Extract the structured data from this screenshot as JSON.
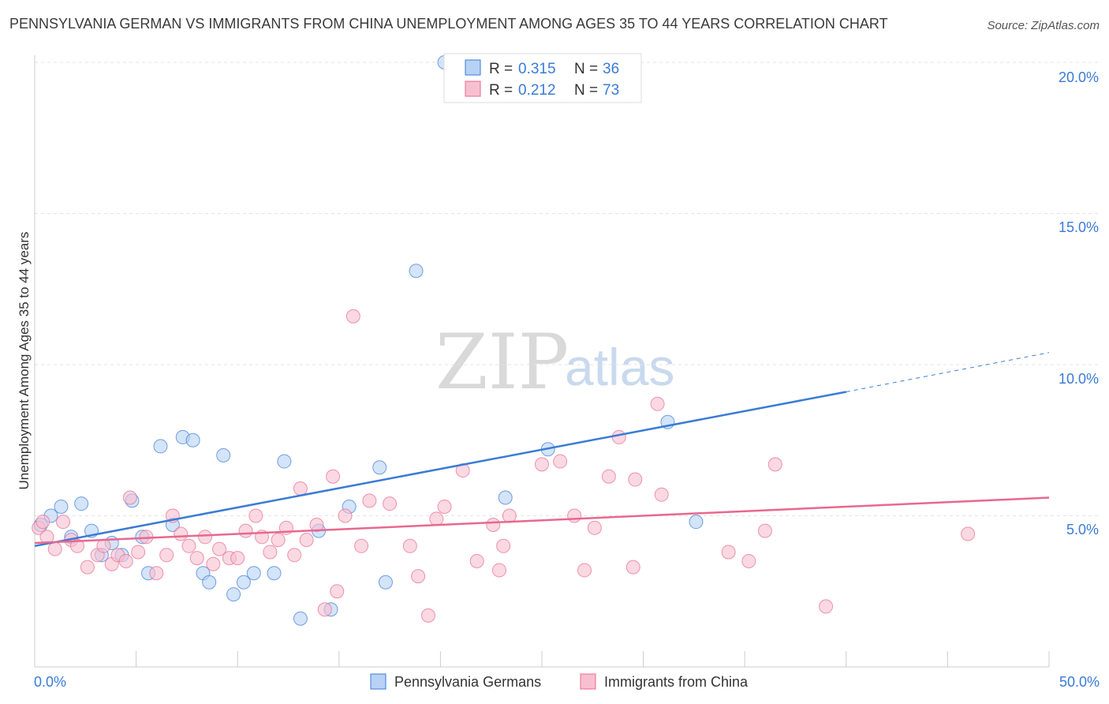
{
  "title": "PENNSYLVANIA GERMAN VS IMMIGRANTS FROM CHINA UNEMPLOYMENT AMONG AGES 35 TO 44 YEARS CORRELATION CHART",
  "source": "Source: ZipAtlas.com",
  "watermark": {
    "zip": "ZIP",
    "atlas": "atlas"
  },
  "legend": {
    "r_label": "R =",
    "n_label": "N =",
    "series": [
      {
        "r": "0.315",
        "n": "36"
      },
      {
        "r": "0.212",
        "n": "73"
      }
    ]
  },
  "chart_data": {
    "type": "scatter",
    "title": "PENNSYLVANIA GERMAN VS IMMIGRANTS FROM CHINA UNEMPLOYMENT AMONG AGES 35 TO 44 YEARS CORRELATION CHART",
    "xlabel": "",
    "ylabel": "Unemployment Among Ages 35 to 44 years",
    "xlim": [
      0,
      50
    ],
    "ylim": [
      0,
      20.5
    ],
    "x_tick_labels": [
      "0.0%",
      "50.0%"
    ],
    "y_ticks": [
      5,
      10,
      15,
      20
    ],
    "y_tick_labels": [
      "5.0%",
      "10.0%",
      "15.0%",
      "20.0%"
    ],
    "grid": true,
    "legend_position": "top-center",
    "colors": {
      "blue": "#3a7bd5",
      "blue_fill": "#b8d2f5",
      "pink": "#e8688f",
      "pink_fill": "#f7c0d0"
    },
    "series": [
      {
        "name": "Pennsylvania Germans",
        "color": "#3a7bd5",
        "r": 0.315,
        "n": 36,
        "trend": {
          "x0": 0,
          "y0": 4.0,
          "x1": 40,
          "y1": 9.1,
          "dashed_to_x": 50,
          "dashed_to_y": 10.4
        },
        "points": [
          [
            0.3,
            4.7
          ],
          [
            0.8,
            5.0
          ],
          [
            1.3,
            5.3
          ],
          [
            1.8,
            4.3
          ],
          [
            2.3,
            5.4
          ],
          [
            2.8,
            4.5
          ],
          [
            3.3,
            3.7
          ],
          [
            3.8,
            4.1
          ],
          [
            4.3,
            3.7
          ],
          [
            4.8,
            5.5
          ],
          [
            5.3,
            4.3
          ],
          [
            5.6,
            3.1
          ],
          [
            6.2,
            7.3
          ],
          [
            6.8,
            4.7
          ],
          [
            7.3,
            7.6
          ],
          [
            7.8,
            7.5
          ],
          [
            8.3,
            3.1
          ],
          [
            8.6,
            2.8
          ],
          [
            9.3,
            7.0
          ],
          [
            9.8,
            2.4
          ],
          [
            10.3,
            2.8
          ],
          [
            10.8,
            3.1
          ],
          [
            11.8,
            3.1
          ],
          [
            12.3,
            6.8
          ],
          [
            13.1,
            1.6
          ],
          [
            14.0,
            4.5
          ],
          [
            14.6,
            1.9
          ],
          [
            15.5,
            5.3
          ],
          [
            17.0,
            6.6
          ],
          [
            17.3,
            2.8
          ],
          [
            18.8,
            13.1
          ],
          [
            20.2,
            20.0
          ],
          [
            23.2,
            5.6
          ],
          [
            25.3,
            7.2
          ],
          [
            31.2,
            8.1
          ],
          [
            32.6,
            4.8
          ]
        ]
      },
      {
        "name": "Immigrants from China",
        "color": "#e8688f",
        "r": 0.212,
        "n": 73,
        "trend": {
          "x0": 0,
          "y0": 4.1,
          "x1": 50,
          "y1": 5.6
        },
        "points": [
          [
            0.2,
            4.6
          ],
          [
            0.6,
            4.3
          ],
          [
            1.0,
            3.9
          ],
          [
            1.4,
            4.8
          ],
          [
            1.8,
            4.2
          ],
          [
            2.1,
            4.0
          ],
          [
            2.6,
            3.3
          ],
          [
            3.1,
            3.7
          ],
          [
            3.4,
            4.0
          ],
          [
            3.8,
            3.4
          ],
          [
            4.1,
            3.7
          ],
          [
            4.5,
            3.5
          ],
          [
            4.7,
            5.6
          ],
          [
            5.1,
            3.8
          ],
          [
            5.5,
            4.3
          ],
          [
            6.0,
            3.1
          ],
          [
            6.5,
            3.7
          ],
          [
            6.8,
            5.0
          ],
          [
            7.2,
            4.4
          ],
          [
            7.6,
            4.0
          ],
          [
            8.0,
            3.6
          ],
          [
            8.4,
            4.3
          ],
          [
            8.8,
            3.4
          ],
          [
            9.1,
            3.9
          ],
          [
            9.6,
            3.6
          ],
          [
            10.0,
            3.6
          ],
          [
            10.4,
            4.5
          ],
          [
            10.9,
            5.0
          ],
          [
            11.2,
            4.3
          ],
          [
            11.6,
            3.8
          ],
          [
            12.0,
            4.2
          ],
          [
            12.4,
            4.6
          ],
          [
            12.8,
            3.7
          ],
          [
            13.1,
            5.9
          ],
          [
            13.4,
            4.2
          ],
          [
            13.9,
            4.7
          ],
          [
            14.3,
            1.9
          ],
          [
            14.7,
            6.3
          ],
          [
            14.9,
            2.5
          ],
          [
            15.3,
            5.0
          ],
          [
            15.7,
            11.6
          ],
          [
            16.1,
            4.0
          ],
          [
            16.5,
            5.5
          ],
          [
            17.5,
            5.4
          ],
          [
            18.5,
            4.0
          ],
          [
            18.9,
            3.0
          ],
          [
            19.4,
            1.7
          ],
          [
            19.8,
            4.9
          ],
          [
            20.2,
            5.3
          ],
          [
            21.1,
            6.5
          ],
          [
            21.8,
            3.5
          ],
          [
            22.6,
            4.7
          ],
          [
            22.9,
            3.2
          ],
          [
            23.1,
            4.0
          ],
          [
            23.4,
            5.0
          ],
          [
            25.0,
            6.7
          ],
          [
            25.9,
            6.8
          ],
          [
            26.6,
            5.0
          ],
          [
            27.1,
            3.2
          ],
          [
            27.6,
            4.6
          ],
          [
            28.3,
            6.3
          ],
          [
            28.8,
            7.6
          ],
          [
            29.5,
            3.3
          ],
          [
            29.6,
            6.2
          ],
          [
            30.7,
            8.7
          ],
          [
            30.9,
            5.7
          ],
          [
            34.2,
            3.8
          ],
          [
            35.2,
            3.5
          ],
          [
            36.0,
            4.5
          ],
          [
            36.5,
            6.7
          ],
          [
            39.0,
            2.0
          ],
          [
            46.0,
            4.4
          ],
          [
            0.4,
            4.8
          ]
        ]
      }
    ]
  }
}
